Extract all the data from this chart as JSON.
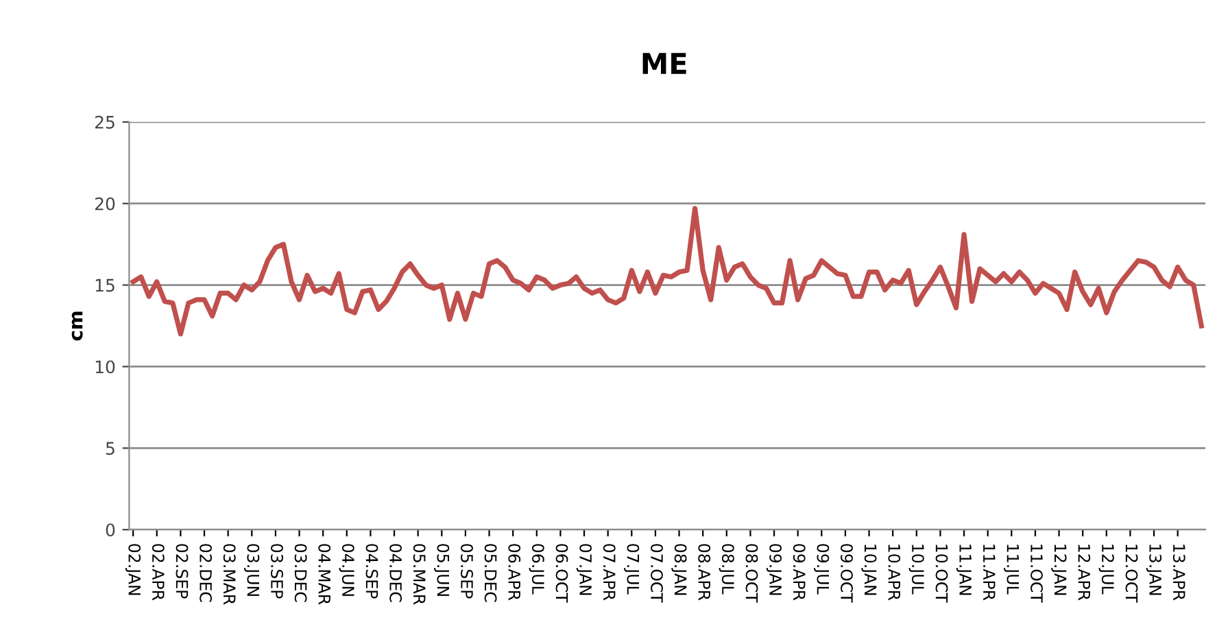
{
  "chart_data": {
    "type": "line",
    "title": "ME",
    "ylabel": "cm",
    "categories": [
      "02.JAN",
      null,
      null,
      "02.APR",
      null,
      null,
      "02.SEP",
      null,
      null,
      "02.DEC",
      null,
      null,
      "03.MAR",
      null,
      null,
      "03.JUN",
      null,
      null,
      "03.SEP",
      null,
      null,
      "03.DEC",
      null,
      null,
      "04.MAR",
      null,
      null,
      "04.JUN",
      null,
      null,
      "04.SEP",
      null,
      null,
      "04.DEC",
      null,
      null,
      "05.MAR",
      null,
      null,
      "05.JUN",
      null,
      null,
      "05.SEP",
      null,
      null,
      "05.DEC",
      null,
      null,
      "06.APR",
      null,
      null,
      "06.JUL",
      null,
      null,
      "06.OCT",
      null,
      null,
      "07.JAN",
      null,
      null,
      "07.APR",
      null,
      null,
      "07.JUL",
      null,
      null,
      "07.OCT",
      null,
      null,
      "08.JAN",
      null,
      null,
      "08.APR",
      null,
      null,
      "08.JUL",
      null,
      null,
      "08.OCT",
      null,
      null,
      "09.JAN",
      null,
      null,
      "09.APR",
      null,
      null,
      "09.JUL",
      null,
      null,
      "09.OCT",
      null,
      null,
      "10.JAN",
      null,
      null,
      "10.APR",
      null,
      null,
      "10.JUL",
      null,
      null,
      "10.OCT",
      null,
      null,
      "11.JAN",
      null,
      null,
      "11.APR",
      null,
      null,
      "11.JUL",
      null,
      null,
      "11.OCT",
      null,
      null,
      "12.JAN",
      null,
      null,
      "12.APR",
      null,
      null,
      "12.JUL",
      null,
      null,
      "12.OCT",
      null,
      null,
      "13.JAN",
      null,
      null,
      "13.APR",
      null,
      null,
      null
    ],
    "series": [
      {
        "color": "#c0504d",
        "values": [
          15.2,
          15.5,
          14.3,
          15.2,
          14.0,
          13.9,
          12.0,
          13.9,
          14.1,
          14.1,
          13.1,
          14.5,
          14.5,
          14.1,
          15.0,
          14.7,
          15.2,
          16.5,
          17.3,
          17.5,
          15.2,
          14.1,
          15.6,
          14.6,
          14.8,
          14.5,
          15.7,
          13.5,
          13.3,
          14.6,
          14.7,
          13.5,
          14.0,
          14.8,
          15.8,
          16.3,
          15.6,
          15.0,
          14.8,
          15.0,
          12.9,
          14.5,
          12.9,
          14.5,
          14.3,
          16.3,
          16.5,
          16.1,
          15.3,
          15.1,
          14.7,
          15.5,
          15.3,
          14.8,
          15.0,
          15.1,
          15.5,
          14.8,
          14.5,
          14.7,
          14.1,
          13.9,
          14.2,
          15.9,
          14.6,
          15.8,
          14.5,
          15.6,
          15.5,
          15.8,
          15.9,
          19.7,
          15.9,
          14.1,
          17.3,
          15.3,
          16.1,
          16.3,
          15.5,
          15.0,
          14.8,
          13.9,
          13.9,
          16.5,
          14.1,
          15.4,
          15.6,
          16.5,
          16.1,
          15.7,
          15.6,
          14.3,
          14.3,
          15.8,
          15.8,
          14.7,
          15.3,
          15.1,
          15.9,
          13.8,
          14.6,
          15.3,
          16.1,
          14.9,
          13.6,
          18.1,
          14.0,
          16.0,
          15.6,
          15.2,
          15.7,
          15.2,
          15.8,
          15.3,
          14.5,
          15.1,
          14.8,
          14.5,
          13.5,
          15.8,
          14.6,
          13.8,
          14.8,
          13.3,
          14.6,
          15.3,
          15.9,
          16.5,
          16.4,
          16.1,
          15.3,
          14.9,
          16.1,
          15.3,
          15.0,
          12.5
        ]
      }
    ],
    "ylim": [
      0,
      25
    ],
    "yticks": [
      0,
      5,
      10,
      15,
      20,
      25
    ],
    "grid": "y",
    "marker": "none",
    "line_style": "solid",
    "legend": false
  }
}
